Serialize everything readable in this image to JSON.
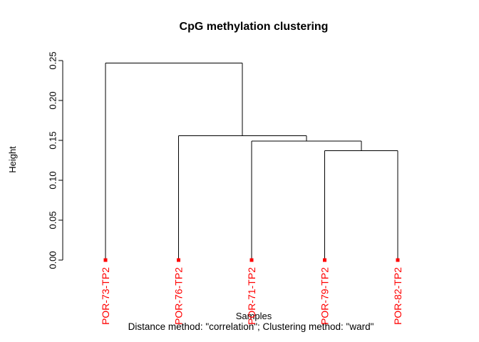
{
  "chart_data": {
    "type": "dendrogram",
    "title": "CpG methylation clustering",
    "ylabel": "Height",
    "xlabel": "Samples",
    "subtitle": "Distance method: \"correlation\"; Clustering method: \"ward\"",
    "ylim": [
      0,
      0.25
    ],
    "yticks": [
      "0.00",
      "0.05",
      "0.10",
      "0.15",
      "0.20",
      "0.25"
    ],
    "leaves": [
      "POR-73-TP2",
      "POR-76-TP2",
      "POR-71-TP2",
      "POR-79-TP2",
      "POR-82-TP2"
    ],
    "leaf_marker": "filled-square",
    "colors": {
      "line": "#000000",
      "leaf": "#ff0000",
      "text": "#000000",
      "background": "#ffffff"
    },
    "tree": {
      "height": 0.247,
      "children": [
        {
          "leaf": "POR-73-TP2"
        },
        {
          "height": 0.156,
          "children": [
            {
              "leaf": "POR-76-TP2"
            },
            {
              "height": 0.149,
              "children": [
                {
                  "leaf": "POR-71-TP2"
                },
                {
                  "height": 0.137,
                  "children": [
                    {
                      "leaf": "POR-79-TP2"
                    },
                    {
                      "leaf": "POR-82-TP2"
                    }
                  ]
                }
              ]
            }
          ]
        }
      ]
    },
    "merge_heights": [
      0.137,
      0.149,
      0.156,
      0.247
    ]
  }
}
